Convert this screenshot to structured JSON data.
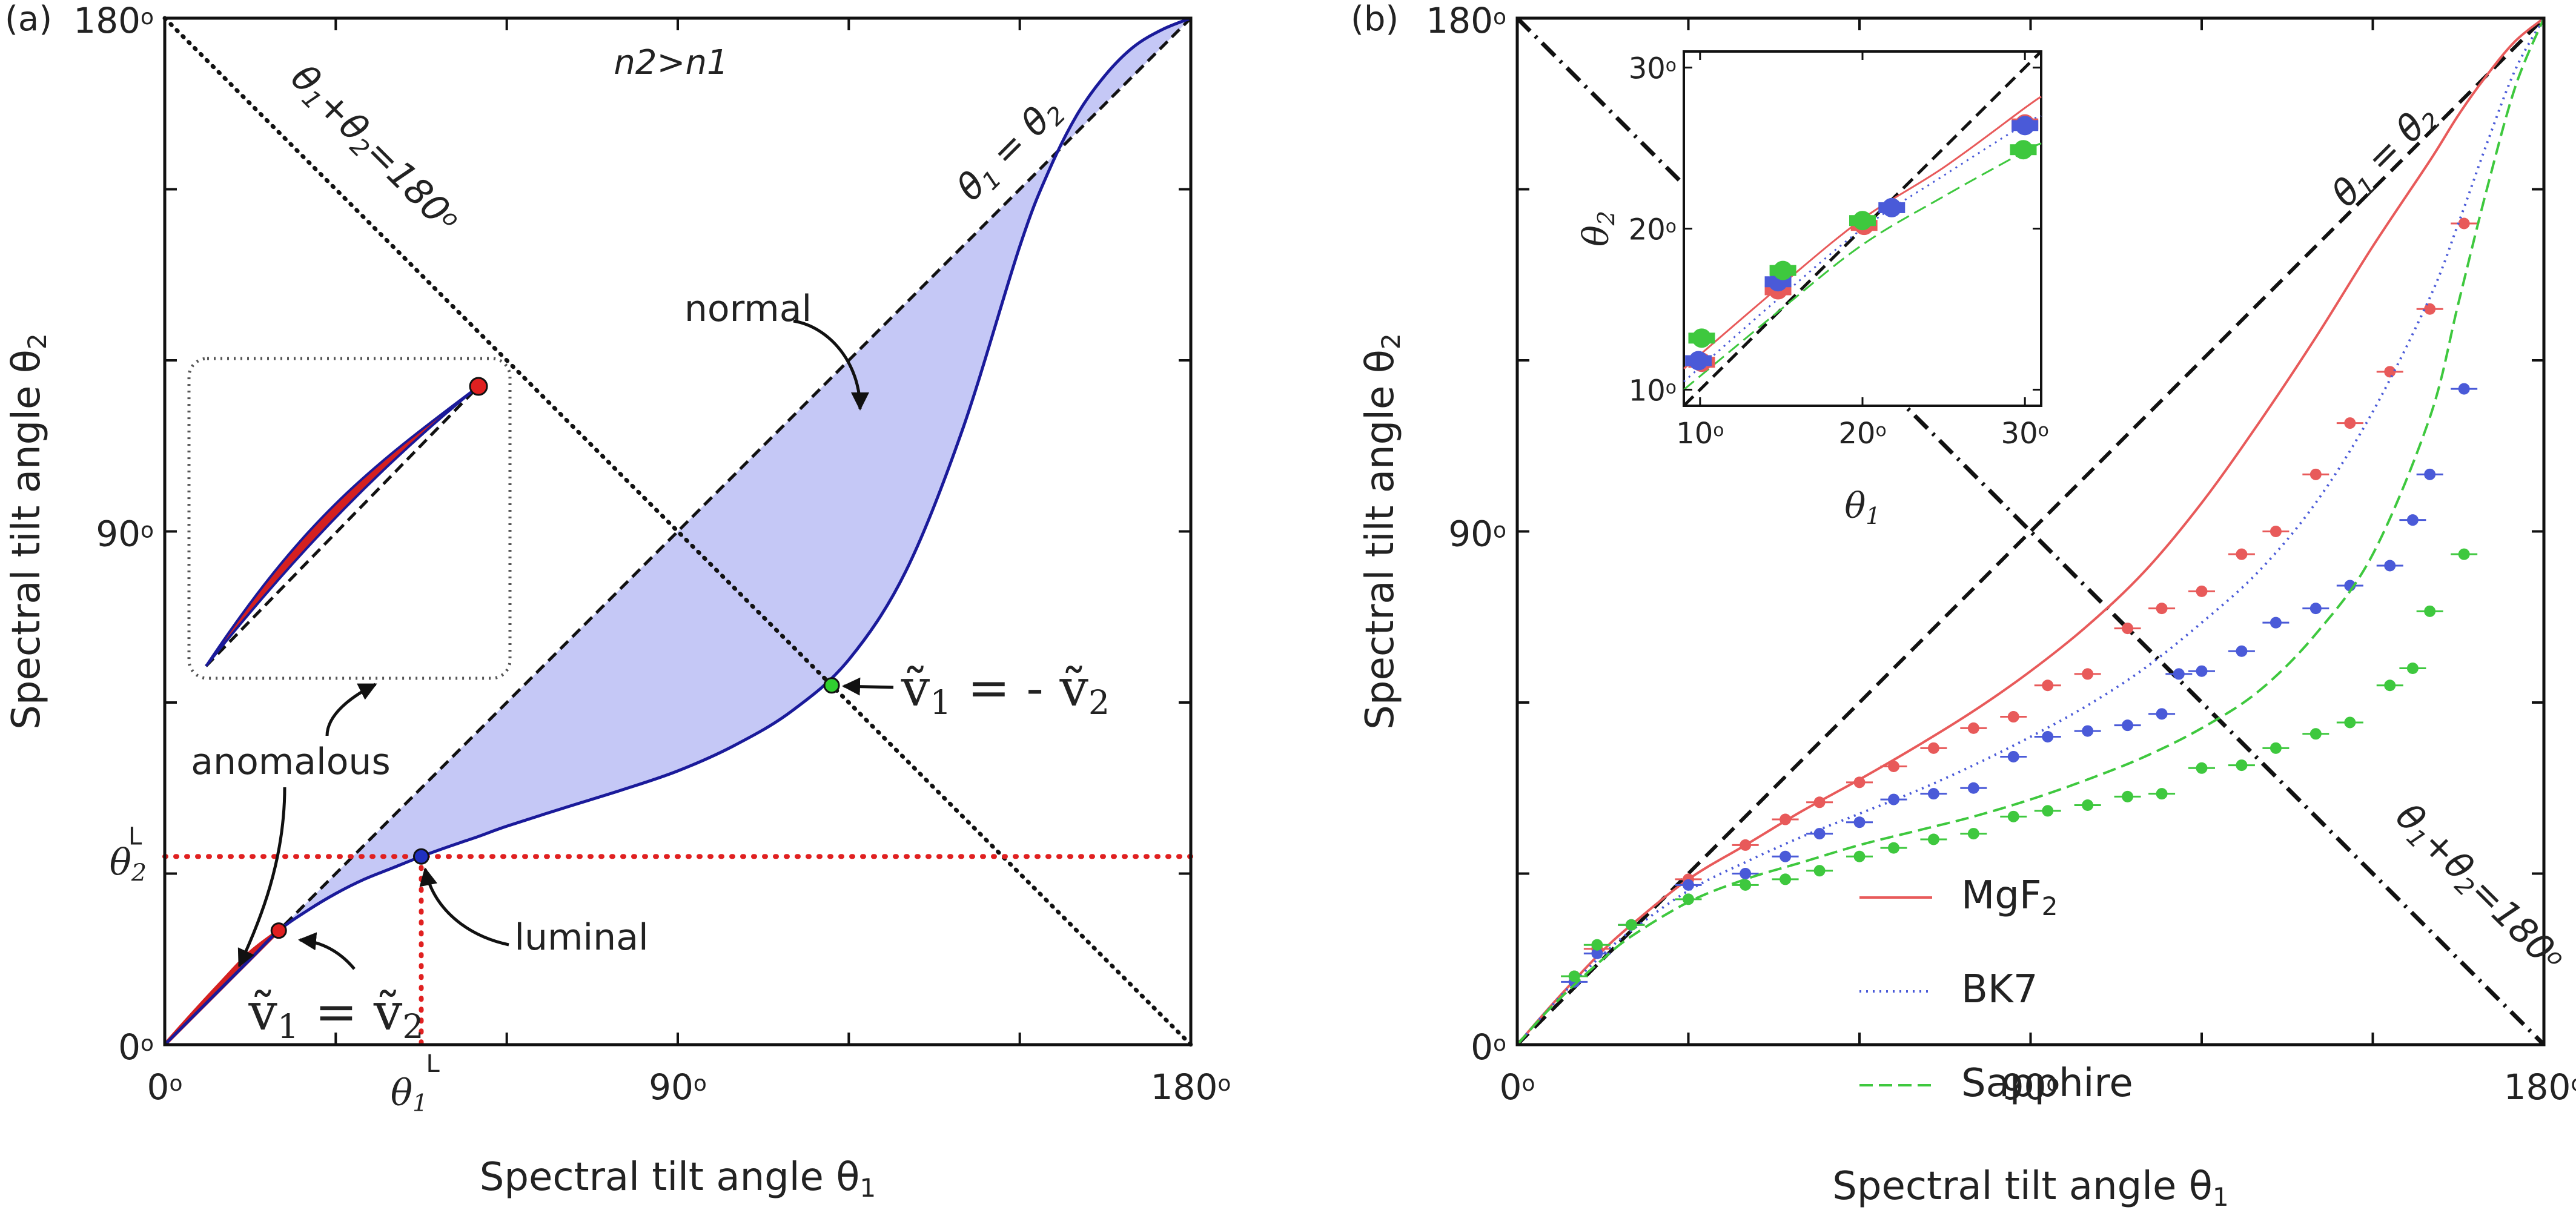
{
  "chart_data": [
    {
      "panel": "a",
      "type": "line",
      "panel_label": "(a)",
      "title": "",
      "xlabel": "Spectral tilt angle θ1",
      "ylabel": "Spectral tilt angle θ2",
      "xlim": [
        0,
        180
      ],
      "ylim": [
        0,
        180
      ],
      "x_ticks": [
        0,
        30,
        60,
        90,
        120,
        150,
        180
      ],
      "y_ticks": [
        0,
        30,
        60,
        90,
        120,
        150,
        180
      ],
      "x_tick_labels": [
        {
          "x": 0,
          "label": "0o"
        },
        {
          "x": 90,
          "label": "90o"
        },
        {
          "x": 180,
          "label": "180o"
        }
      ],
      "y_tick_labels": [
        {
          "y": 0,
          "label": "0o"
        },
        {
          "y": 90,
          "label": "90o"
        },
        {
          "y": 180,
          "label": "180o"
        }
      ],
      "theta1L_label": "θ1L",
      "theta2L_label": "θ2L",
      "theta1L_x": 45,
      "theta2L_y": 33,
      "condition_label": "n2>n1",
      "diag_label": "θ1 = θ2",
      "anti_label": "θ1+θ2=180o",
      "series": [
        {
          "name": "dispersion curve",
          "x": [
            0,
            5,
            10,
            15,
            20,
            25,
            30,
            35,
            40,
            45,
            50,
            55,
            60,
            70,
            80,
            90,
            100,
            110,
            120,
            130,
            140,
            150,
            155,
            160,
            165,
            170,
            175,
            180
          ],
          "y": [
            0,
            5,
            10,
            15,
            20,
            23.5,
            26.5,
            29,
            31,
            33,
            34.8,
            36.5,
            38.3,
            41.5,
            44.6,
            48,
            52.5,
            58.5,
            67.5,
            83,
            108,
            140,
            153,
            163,
            170,
            175,
            178,
            180
          ]
        },
        {
          "name": "anomalous region (red)",
          "x": [
            0,
            5,
            10,
            15,
            20
          ],
          "y": [
            0,
            5.6,
            11.0,
            16.2,
            20
          ]
        }
      ],
      "points": [
        {
          "name": "v1 = v2 point",
          "x": 20,
          "y": 20,
          "color": "#e02020"
        },
        {
          "name": "luminal point",
          "x": 45,
          "y": 33,
          "color": "#2030c0"
        },
        {
          "name": "v1 = -v2 point",
          "x": 117,
          "y": 63,
          "color": "#30d030"
        }
      ],
      "annotations": {
        "normal": "normal",
        "anomalous": "anomalous",
        "luminal": "luminal",
        "v_equal": "ṽ1 = ṽ2",
        "v_opposite": "ṽ1 = - ṽ2"
      }
    },
    {
      "panel": "b",
      "type": "line",
      "panel_label": "(b)",
      "title": "",
      "xlabel": "Spectral tilt angle θ1",
      "ylabel": "Spectral tilt angle θ2",
      "xlim": [
        0,
        180
      ],
      "ylim": [
        0,
        180
      ],
      "x_ticks": [
        0,
        30,
        60,
        90,
        120,
        150,
        180
      ],
      "y_ticks": [
        0,
        30,
        60,
        90,
        120,
        150,
        180
      ],
      "x_tick_labels": [
        {
          "x": 0,
          "label": "0o"
        },
        {
          "x": 90,
          "label": "90o"
        },
        {
          "x": 180,
          "label": "180o"
        }
      ],
      "y_tick_labels": [
        {
          "y": 0,
          "label": "0o"
        },
        {
          "y": 90,
          "label": "90o"
        },
        {
          "y": 180,
          "label": "180o"
        }
      ],
      "diag_label": "θ1 = θ2",
      "anti_label": "θ1+θ2=180o",
      "legend": [
        "MgF2",
        "BK7",
        "Sapphire"
      ],
      "series": [
        {
          "name": "MgF2",
          "color": "#e85a5a",
          "style": "solid",
          "fit_x": [
            0,
            5,
            10,
            15,
            20,
            30,
            40,
            50,
            60,
            70,
            80,
            90,
            100,
            110,
            120,
            130,
            140,
            150,
            160,
            165,
            170,
            175,
            180
          ],
          "fit_y": [
            0,
            5.8,
            11.3,
            16.5,
            21,
            29,
            35,
            41,
            46.5,
            52.3,
            58.5,
            65.5,
            73.5,
            83,
            95,
            109,
            124,
            140,
            155,
            163,
            170,
            176,
            180
          ],
          "points_x": [
            10,
            14,
            20,
            30,
            40,
            47,
            53,
            60,
            66,
            73,
            80,
            87,
            93,
            100,
            107,
            113,
            120,
            127,
            133,
            140,
            146,
            153,
            160,
            166
          ],
          "points_y": [
            12,
            16.8,
            21,
            29,
            35,
            39.5,
            42.5,
            46,
            48.8,
            52,
            55.5,
            57.5,
            63,
            65,
            73,
            76.5,
            79.5,
            86,
            90,
            100,
            109,
            118,
            129,
            144
          ]
        },
        {
          "name": "BK7",
          "color": "#4a5ad8",
          "style": "dotted",
          "fit_x": [
            0,
            5,
            10,
            15,
            20,
            30,
            40,
            50,
            60,
            70,
            80,
            90,
            100,
            110,
            120,
            130,
            140,
            150,
            160,
            165,
            170,
            175,
            180
          ],
          "fit_y": [
            0,
            5.7,
            11,
            15.8,
            20,
            27,
            32,
            36.5,
            40.5,
            44.5,
            49,
            54,
            59.5,
            66,
            74,
            83,
            95,
            111,
            131,
            144,
            158,
            171,
            180
          ],
          "points_x": [
            10,
            14,
            20,
            30,
            40,
            47,
            53,
            60,
            66,
            73,
            80,
            87,
            93,
            100,
            107,
            113,
            116,
            120,
            127,
            133,
            140,
            146,
            153,
            157,
            160,
            166
          ],
          "points_y": [
            11,
            16,
            21,
            28,
            30,
            33,
            37,
            39,
            43,
            44,
            45,
            50.5,
            54,
            55,
            56,
            58,
            65,
            65.5,
            69,
            74,
            76.5,
            80.5,
            84,
            92,
            100,
            115
          ]
        },
        {
          "name": "Sapphire",
          "color": "#3ec83e",
          "style": "dashed",
          "fit_x": [
            0,
            5,
            10,
            15,
            20,
            30,
            40,
            50,
            60,
            70,
            80,
            90,
            100,
            110,
            120,
            130,
            140,
            150,
            160,
            165,
            170,
            175,
            180
          ],
          "fit_y": [
            0,
            5.6,
            10.5,
            15,
            19,
            25,
            29,
            32,
            35,
            37.5,
            40,
            43,
            46.5,
            50.5,
            55.5,
            62,
            72,
            86,
            110,
            130,
            150,
            168,
            180
          ],
          "points_x": [
            10,
            14,
            20,
            30,
            40,
            47,
            53,
            60,
            66,
            73,
            80,
            87,
            93,
            100,
            107,
            113,
            120,
            127,
            133,
            140,
            146,
            153,
            157,
            160,
            166
          ],
          "points_y": [
            12,
            17.5,
            21,
            25.5,
            28,
            29,
            30.5,
            33,
            34.5,
            36,
            37,
            40,
            41,
            42,
            43.5,
            44,
            48.5,
            49,
            52,
            54.5,
            56.5,
            63,
            66,
            76,
            86
          ]
        }
      ],
      "inset": {
        "xlabel": "θ1",
        "ylabel": "θ2",
        "xlim": [
          9,
          31
        ],
        "ylim": [
          9,
          31
        ],
        "x_ticks": [
          10,
          20,
          30
        ],
        "y_ticks": [
          10,
          20,
          30
        ],
        "x_tick_labels": [
          "10o",
          "20o",
          "30o"
        ],
        "y_tick_labels": [
          "10o",
          "20o",
          "30o"
        ],
        "points": [
          {
            "series": "MgF2",
            "x": [
              10.1,
              14.8,
              20.1,
              30.0
            ],
            "y": [
              11.7,
              16.2,
              20.2,
              26.5
            ]
          },
          {
            "series": "BK7",
            "x": [
              9.9,
              14.8,
              21.8,
              30.0
            ],
            "y": [
              11.8,
              16.7,
              21.3,
              26.4
            ]
          },
          {
            "series": "Sapphire",
            "x": [
              10.1,
              15.1,
              20.0,
              29.9
            ],
            "y": [
              13.2,
              17.4,
              20.5,
              24.9
            ]
          }
        ]
      }
    }
  ]
}
